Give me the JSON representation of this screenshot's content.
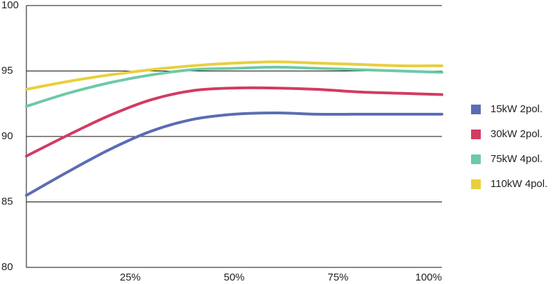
{
  "chart_data": {
    "type": "line",
    "x": [
      0,
      10,
      20,
      30,
      40,
      50,
      60,
      70,
      80,
      90,
      100
    ],
    "series": [
      {
        "name": "15kW 2pol.",
        "color": "#5a6db3",
        "values": [
          85.5,
          87.3,
          89.0,
          90.4,
          91.3,
          91.7,
          91.8,
          91.7,
          91.7,
          91.7,
          91.7
        ]
      },
      {
        "name": "30kW 2pol.",
        "color": "#d23b62",
        "values": [
          88.5,
          90.1,
          91.6,
          92.8,
          93.5,
          93.7,
          93.7,
          93.6,
          93.4,
          93.3,
          93.2
        ]
      },
      {
        "name": "75kW 4pol.",
        "color": "#6ccaa6",
        "values": [
          92.3,
          93.3,
          94.1,
          94.7,
          95.1,
          95.2,
          95.3,
          95.2,
          95.1,
          95.0,
          94.9
        ]
      },
      {
        "name": "110kW 4pol.",
        "color": "#e8cf3e",
        "values": [
          93.6,
          94.2,
          94.7,
          95.1,
          95.4,
          95.6,
          95.7,
          95.6,
          95.5,
          95.4,
          95.4
        ]
      }
    ],
    "xlim": [
      0,
      100
    ],
    "xticks": [
      {
        "value": 25,
        "label": "25%"
      },
      {
        "value": 50,
        "label": "50%"
      },
      {
        "value": 75,
        "label": "75%"
      },
      {
        "value": 100,
        "label": "100%"
      }
    ],
    "ylim": [
      80,
      100
    ],
    "yticks": [
      80,
      85,
      90,
      95,
      100
    ],
    "grid": true,
    "legend": "right"
  }
}
